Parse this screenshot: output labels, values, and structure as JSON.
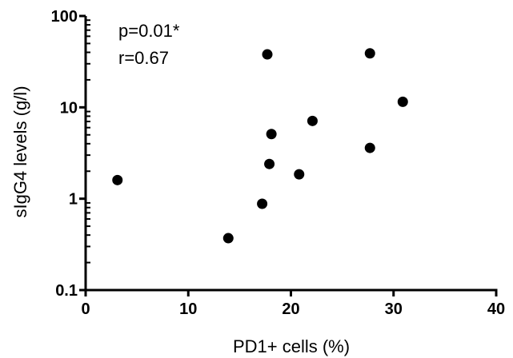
{
  "chart_data": {
    "type": "scatter",
    "xlabel": "PD1+ cells (%)",
    "ylabel": "sIgG4 levels (g/l)",
    "xlim": [
      0,
      40
    ],
    "ylim": [
      0.1,
      100
    ],
    "yscale": "log",
    "grid": false,
    "x_ticks": [
      0,
      10,
      20,
      30,
      40
    ],
    "x_tick_labels": [
      "0",
      "10",
      "20",
      "30",
      "40"
    ],
    "y_ticks": [
      0.1,
      1,
      10,
      100
    ],
    "y_tick_labels": [
      "0.1",
      "1",
      "10",
      "100"
    ],
    "annotations": [
      "p=0.01*",
      "r=0.67"
    ],
    "marker_color": "#000000",
    "points": [
      {
        "x": 3.1,
        "y": 1.6
      },
      {
        "x": 13.9,
        "y": 0.37
      },
      {
        "x": 17.2,
        "y": 0.88
      },
      {
        "x": 17.7,
        "y": 38
      },
      {
        "x": 17.9,
        "y": 2.4
      },
      {
        "x": 18.1,
        "y": 5.1
      },
      {
        "x": 20.8,
        "y": 1.85
      },
      {
        "x": 22.1,
        "y": 7.1
      },
      {
        "x": 27.7,
        "y": 39
      },
      {
        "x": 27.7,
        "y": 3.6
      },
      {
        "x": 30.9,
        "y": 11.5
      }
    ]
  }
}
